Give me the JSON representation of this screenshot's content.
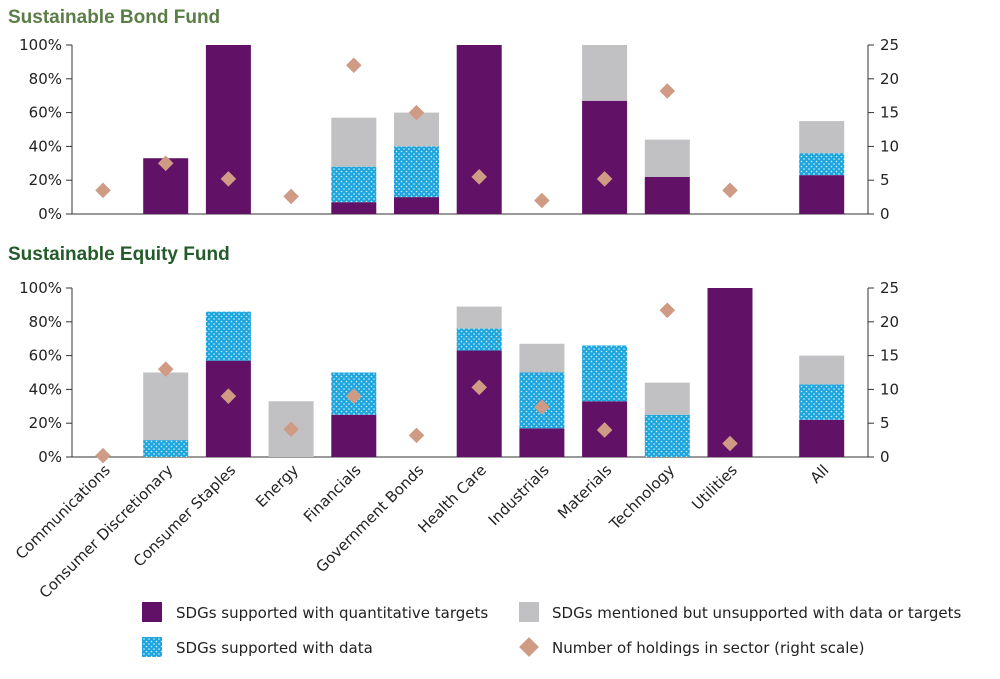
{
  "colors": {
    "quant": "#611267",
    "data": "#1da6dd",
    "data_dot": "#ffffff",
    "mentioned": "#c1c1c3",
    "holdings": "#cf9b85",
    "bond_title": "#5b7d46",
    "equity_title": "#245b2a",
    "axis": "#333333"
  },
  "chart_data": [
    {
      "type": "bar",
      "stacked": true,
      "title": "Sustainable Bond Fund",
      "categories": [
        "Communications",
        "Consumer Discretionary",
        "Consumer Staples",
        "Energy",
        "Financials",
        "Government Bonds",
        "Health Care",
        "Industrials",
        "Materials",
        "Technology",
        "Utilities",
        "All"
      ],
      "series": [
        {
          "name": "SDGs supported with quantitative targets",
          "values": [
            0,
            33,
            100,
            0,
            7,
            10,
            100,
            0,
            67,
            22,
            0,
            23
          ]
        },
        {
          "name": "SDGs supported with data",
          "values": [
            0,
            0,
            0,
            0,
            21,
            30,
            0,
            0,
            0,
            0,
            0,
            13
          ]
        },
        {
          "name": "SDGs mentioned but unsupported with data or targets",
          "values": [
            0,
            0,
            0,
            0,
            29,
            20,
            0,
            0,
            33,
            22,
            0,
            19
          ]
        }
      ],
      "holdings": {
        "name": "Number of holdings in sector (right scale)",
        "values": [
          3.5,
          7.5,
          5.2,
          2.6,
          22,
          15,
          5.5,
          2,
          5.2,
          18.2,
          3.5,
          null
        ]
      },
      "ylim": [
        0,
        100
      ],
      "y_ticks": [
        "0%",
        "20%",
        "40%",
        "60%",
        "80%",
        "100%"
      ],
      "y2lim": [
        0,
        25
      ],
      "y2_ticks": [
        "0",
        "5",
        "10",
        "15",
        "20",
        "25"
      ]
    },
    {
      "type": "bar",
      "stacked": true,
      "title": "Sustainable Equity Fund",
      "categories": [
        "Communications",
        "Consumer Discretionary",
        "Consumer Staples",
        "Energy",
        "Financials",
        "Government Bonds",
        "Health Care",
        "Industrials",
        "Materials",
        "Technology",
        "Utilities",
        "All"
      ],
      "series": [
        {
          "name": "SDGs supported with quantitative targets",
          "values": [
            0,
            0,
            57,
            0,
            25,
            0,
            63,
            17,
            33,
            0,
            100,
            22
          ]
        },
        {
          "name": "SDGs supported with data",
          "values": [
            0,
            10,
            29,
            0,
            25,
            0,
            13,
            33,
            33,
            25,
            0,
            21
          ]
        },
        {
          "name": "SDGs mentioned but unsupported with data or targets",
          "values": [
            0,
            40,
            0,
            33,
            0,
            0,
            13,
            17,
            0,
            19,
            0,
            17
          ]
        }
      ],
      "holdings": {
        "name": "Number of holdings in sector (right scale)",
        "values": [
          0.2,
          13,
          9,
          4.1,
          9,
          3.2,
          10.3,
          7.4,
          4,
          21.7,
          2,
          null
        ]
      },
      "ylim": [
        0,
        100
      ],
      "y_ticks": [
        "0%",
        "20%",
        "40%",
        "60%",
        "80%",
        "100%"
      ],
      "y2lim": [
        0,
        25
      ],
      "y2_ticks": [
        "0",
        "5",
        "10",
        "15",
        "20",
        "25"
      ]
    }
  ],
  "legend": {
    "quant": "SDGs supported with quantitative targets",
    "data": "SDGs supported with data",
    "mentioned": "SDGs mentioned but unsupported with data or targets",
    "holdings": "Number of holdings in sector (right scale)"
  }
}
